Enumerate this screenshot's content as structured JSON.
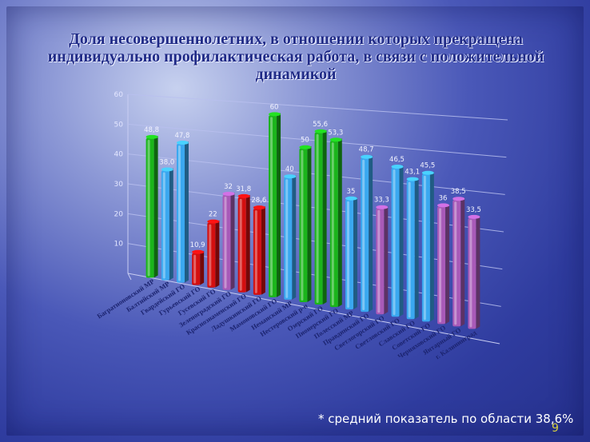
{
  "slide": {
    "title": "Доля несовершеннолетних, в отношении которых прекращена индивидуально профилактическая работа, в связи с положительной динамикой",
    "footnote": "* средний показатель по области 38,6%",
    "page_number": "9"
  },
  "chart_data": {
    "type": "bar",
    "title": "",
    "xlabel": "",
    "ylabel": "",
    "ylim": [
      0,
      60
    ],
    "yticks": [
      "10",
      "20",
      "30",
      "40",
      "50",
      "60"
    ],
    "grid": true,
    "categories": [
      "Багратионовский МР",
      "Балтийский МР",
      "Гвардейский ГО",
      "Гурьевский ГО",
      "Гусевский ГО",
      "Зеленоградский ГО",
      "Краснознаменский ГО",
      "Ладушкинский ГО",
      "Мамоновский ГО",
      "Неманский МР",
      "Нестеровский р-н",
      "Озерский ГО",
      "Пионерский ГО",
      "Полесский МР",
      "Правдинский ГО",
      "Светлогорский ГО",
      "Светловский ГО",
      "Славский ГО",
      "Советский ГО",
      "Черняховский ГО",
      "Янтарный ГО",
      "г. Калининград"
    ],
    "values": [
      48.8,
      38.0,
      47.8,
      10.9,
      22,
      32,
      31.8,
      28.6,
      60,
      40,
      50,
      55.6,
      53.3,
      35,
      48.7,
      33.3,
      46.5,
      43.1,
      45.5,
      36,
      38.5,
      33.5
    ],
    "value_labels": [
      "48,8",
      "38,0",
      "47,8",
      "10,9",
      "22",
      "32",
      "31,8",
      "28,6",
      "60",
      "40",
      "50",
      "55,6",
      "53,3",
      "35",
      "48,7",
      "33,3",
      "46,5",
      "43,1",
      "45,5",
      "36",
      "38,5",
      "33,5"
    ],
    "bar_colors": [
      "#1bb51b",
      "#3aa8f0",
      "#3aa8f0",
      "#d40f0f",
      "#d40f0f",
      "#a85ab8",
      "#d40f0f",
      "#d40f0f",
      "#1bb51b",
      "#3aa8f0",
      "#1bb51b",
      "#1bb51b",
      "#1bb51b",
      "#3aa8f0",
      "#3aa8f0",
      "#a85ab8",
      "#3aa8f0",
      "#3aa8f0",
      "#3aa8f0",
      "#a85ab8",
      "#a85ab8",
      "#a85ab8"
    ]
  }
}
